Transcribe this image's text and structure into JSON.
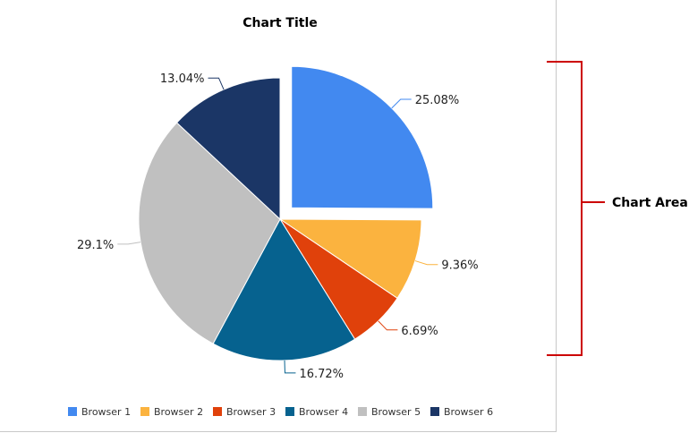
{
  "chart_data": {
    "type": "pie",
    "title": "Chart Title",
    "categories": [
      "Browser 1",
      "Browser 2",
      "Browser 3",
      "Browser 4",
      "Browser 5",
      "Browser 6"
    ],
    "values": [
      25.08,
      9.36,
      6.69,
      16.72,
      29.1,
      13.04
    ],
    "labels": [
      "25.08%",
      "9.36%",
      "6.69%",
      "16.72%",
      "29.1%",
      "13.04%"
    ],
    "colors": [
      "#4289f0",
      "#fbb33f",
      "#e0410b",
      "#06628f",
      "#c0c0c0",
      "#1b3666"
    ],
    "exploded": [
      true,
      false,
      false,
      false,
      false,
      false
    ],
    "legend_position": "bottom"
  },
  "annotation": {
    "label": "Chart Area",
    "color": "#cc0000"
  }
}
